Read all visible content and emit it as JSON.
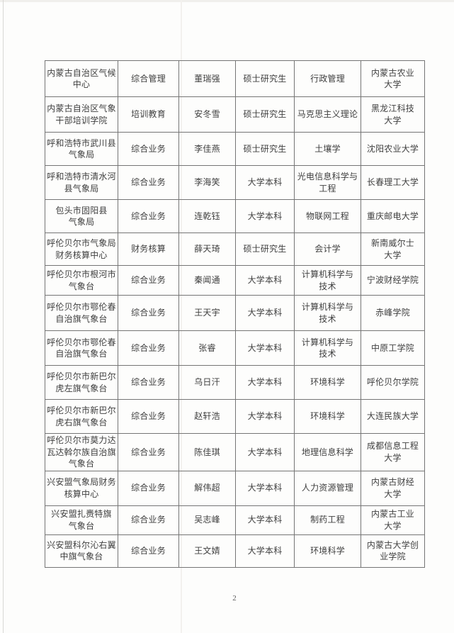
{
  "document": {
    "page_number": "2"
  },
  "table": {
    "rows": [
      [
        "内蒙古自治区气候\n中心",
        "综合管理",
        "董瑞强",
        "硕士研究生",
        "行政管理",
        "内蒙古农业\n大学"
      ],
      [
        "内蒙古自治区气象\n干部培训学院",
        "培训教育",
        "安冬雪",
        "硕士研究生",
        "马克思主义理论",
        "黑龙江科技\n大学"
      ],
      [
        "呼和浩特市武川县\n气象局",
        "综合业务",
        "李佳燕",
        "硕士研究生",
        "土壤学",
        "沈阳农业大学"
      ],
      [
        "呼和浩特市清水河\n县气象局",
        "综合业务",
        "李海笑",
        "大学本科",
        "光电信息科学与\n工程",
        "长春理工大学"
      ],
      [
        "包头市固阳县\n气象局",
        "综合业务",
        "连乾钰",
        "大学本科",
        "物联网工程",
        "重庆邮电大学"
      ],
      [
        "呼伦贝尔市气象局\n财务核算中心",
        "财务核算",
        "薛天琦",
        "硕士研究生",
        "会计学",
        "新南威尔士\n大学"
      ],
      [
        "呼伦贝尔市根河市\n气象台",
        "综合业务",
        "秦闻通",
        "大学本科",
        "计算机科学与\n技术",
        "宁波财经学院"
      ],
      [
        "呼伦贝尔市鄂伦春\n自治旗气象台",
        "综合业务",
        "王天宇",
        "大学本科",
        "计算机科学与\n技术",
        "赤峰学院"
      ],
      [
        "呼伦贝尔市鄂伦春\n自治旗气象台",
        "综合业务",
        "张睿",
        "大学本科",
        "计算机科学与\n技术",
        "中原工学院"
      ],
      [
        "呼伦贝尔市新巴尔\n虎左旗气象台",
        "综合业务",
        "乌日汗",
        "大学本科",
        "环境科学",
        "呼伦贝尔学院"
      ],
      [
        "呼伦贝尔市新巴尔\n虎右旗气象台",
        "综合业务",
        "赵轩浩",
        "大学本科",
        "环境科学",
        "大连民族大学"
      ],
      [
        "呼伦贝尔市莫力达\n瓦达斡尔族自治旗\n气象台",
        "综合业务",
        "陈佳琪",
        "大学本科",
        "地理信息科学",
        "成都信息工程\n大学"
      ],
      [
        "兴安盟气象局财务\n核算中心",
        "综合业务",
        "解伟超",
        "大学本科",
        "人力资源管理",
        "内蒙古财经\n大学"
      ],
      [
        "兴安盟扎赉特旗\n气象台",
        "综合业务",
        "吴志峰",
        "大学本科",
        "制药工程",
        "内蒙古工业\n大学"
      ],
      [
        "兴安盟科尔沁右翼\n中旗气象台",
        "综合业务",
        "王文婧",
        "大学本科",
        "环境科学",
        "内蒙古大学创\n业学院"
      ]
    ]
  }
}
